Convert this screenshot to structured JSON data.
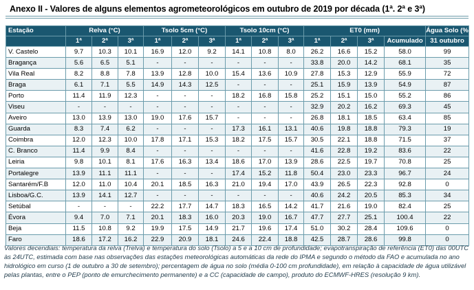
{
  "title": "Anexo II - Valores de alguns elementos agrometeorológicos em outubro de 2019 por década (1ª. 2ª e 3ª)",
  "headers": {
    "station": "Estação",
    "relva": "Relva (°C)",
    "tsolo5": "Tsolo 5cm (°C)",
    "tsolo10": "Tsolo 10cm (°C)",
    "eto": "ET0 (mm)",
    "agua": "Água Solo (%)",
    "sub": [
      "1ª",
      "2ª",
      "3ª",
      "1ª",
      "2ª",
      "3ª",
      "1ª",
      "2ª",
      "3ª",
      "1ª",
      "2ª",
      "3ª",
      "Acumulado",
      "31 outubro"
    ]
  },
  "rows": [
    [
      "V. Castelo",
      "9.7",
      "10.3",
      "10.1",
      "16.9",
      "12.0",
      "9.2",
      "14.1",
      "10.8",
      "8.0",
      "26.2",
      "16.6",
      "15.2",
      "58.0",
      "99"
    ],
    [
      "Bragança",
      "5.6",
      "6.5",
      "5.1",
      "-",
      "-",
      "-",
      "-",
      "-",
      "-",
      "33.8",
      "20.0",
      "14.2",
      "68.1",
      "35"
    ],
    [
      "Vila Real",
      "8.2",
      "8.8",
      "7.8",
      "13.9",
      "12.8",
      "10.0",
      "15.4",
      "13.6",
      "10.9",
      "27.8",
      "15.3",
      "12.9",
      "55.9",
      "72"
    ],
    [
      "Braga",
      "6.1",
      "7.1",
      "5.5",
      "14.9",
      "14.3",
      "12.5",
      "-",
      "-",
      "-",
      "25.1",
      "15.9",
      "13.9",
      "54.9",
      "87"
    ],
    [
      "Porto",
      "11.4",
      "11.9",
      "12.3",
      "-",
      "-",
      "-",
      "18.2",
      "16.8",
      "15.8",
      "25.2",
      "15.1",
      "15.0",
      "55.2",
      "86"
    ],
    [
      "Viseu",
      "-",
      "-",
      "-",
      "-",
      "-",
      "-",
      "-",
      "-",
      "-",
      "32.9",
      "20.2",
      "16.2",
      "69.3",
      "45"
    ],
    [
      "Aveiro",
      "13.0",
      "13.9",
      "13.0",
      "19.0",
      "17.6",
      "15.7",
      "-",
      "-",
      "-",
      "26.8",
      "18.1",
      "18.5",
      "63.4",
      "85"
    ],
    [
      "Guarda",
      "8.3",
      "7.4",
      "6.2",
      "-",
      "-",
      "-",
      "17.3",
      "16.1",
      "13.1",
      "40.6",
      "19.8",
      "18.8",
      "79.3",
      "19"
    ],
    [
      "Coimbra",
      "12.0",
      "12.3",
      "10.0",
      "17.8",
      "17.1",
      "15.3",
      "18.2",
      "17.5",
      "15.7",
      "30.5",
      "22.1",
      "18.8",
      "71.5",
      "37"
    ],
    [
      "C. Branco",
      "11.4",
      "9.9",
      "8.4",
      "-",
      "-",
      "-",
      "-",
      "-",
      "-",
      "41.6",
      "22.8",
      "19.2",
      "83.6",
      "22"
    ],
    [
      "Leiria",
      "9.8",
      "10.1",
      "8.1",
      "17.6",
      "16.3",
      "13.4",
      "18.6",
      "17.0",
      "13.9",
      "28.6",
      "22.5",
      "19.7",
      "70.8",
      "25"
    ],
    [
      "Portalegre",
      "13.9",
      "11.1",
      "11.1",
      "-",
      "-",
      "-",
      "17.4",
      "15.2",
      "11.8",
      "50.4",
      "23.0",
      "23.3",
      "96.7",
      "24"
    ],
    [
      "Santarém/F.B",
      "12.0",
      "11.0",
      "10.4",
      "20.1",
      "18.5",
      "16.3",
      "21.0",
      "19.4",
      "17.0",
      "43.9",
      "26.5",
      "22.3",
      "92.8",
      "0"
    ],
    [
      "Lisboa/G.C.",
      "13.9",
      "14.1",
      "12.7",
      "-",
      "-",
      "-",
      "-",
      "-",
      "-",
      "40.6",
      "24.2",
      "20.5",
      "85.3",
      "34"
    ],
    [
      "Setúbal",
      "-",
      "-",
      "-",
      "22.2",
      "17.7",
      "14.7",
      "18.3",
      "16.5",
      "14.2",
      "41.7",
      "21.6",
      "19.0",
      "82.4",
      "25"
    ],
    [
      "Évora",
      "9.4",
      "7.0",
      "7.1",
      "20.1",
      "18.3",
      "16.0",
      "20.3",
      "19.0",
      "16.7",
      "47.7",
      "27.7",
      "25.1",
      "100.4",
      "22"
    ],
    [
      "Beja",
      "11.5",
      "10.8",
      "9.2",
      "19.9",
      "17.5",
      "14.9",
      "21.7",
      "19.6",
      "17.4",
      "51.0",
      "30.2",
      "28.4",
      "109.6",
      "0"
    ],
    [
      "Faro",
      "18.6",
      "17.2",
      "16.2",
      "22.9",
      "20.9",
      "18.1",
      "24.6",
      "22.4",
      "18.8",
      "42.5",
      "28.7",
      "28.6",
      "99.8",
      "0"
    ]
  ],
  "notes": "Valores decendiais: temperatura da relva (Trelva) e temperatura do solo (Tsolo) a 5 e a 10 cm de profundidade; evapotranspiração de referência (ET0) das 00UTC às 24UTC, estimada com base nas observações das estações meteorológicas automáticas da rede do IPMA e segundo o método da FAO e acumulada no ano hidrológico em curso (1 de outubro a 30 de setembro); percentagem de água no solo (média 0-100 cm profundidade), em relação à capacidade de água utilizável pelas plantas, entre o PEP (ponto de emurchecimento permanente) e a CC (capacidade de campo), produto do ECMWF-HRES (resolução 9 km)."
}
